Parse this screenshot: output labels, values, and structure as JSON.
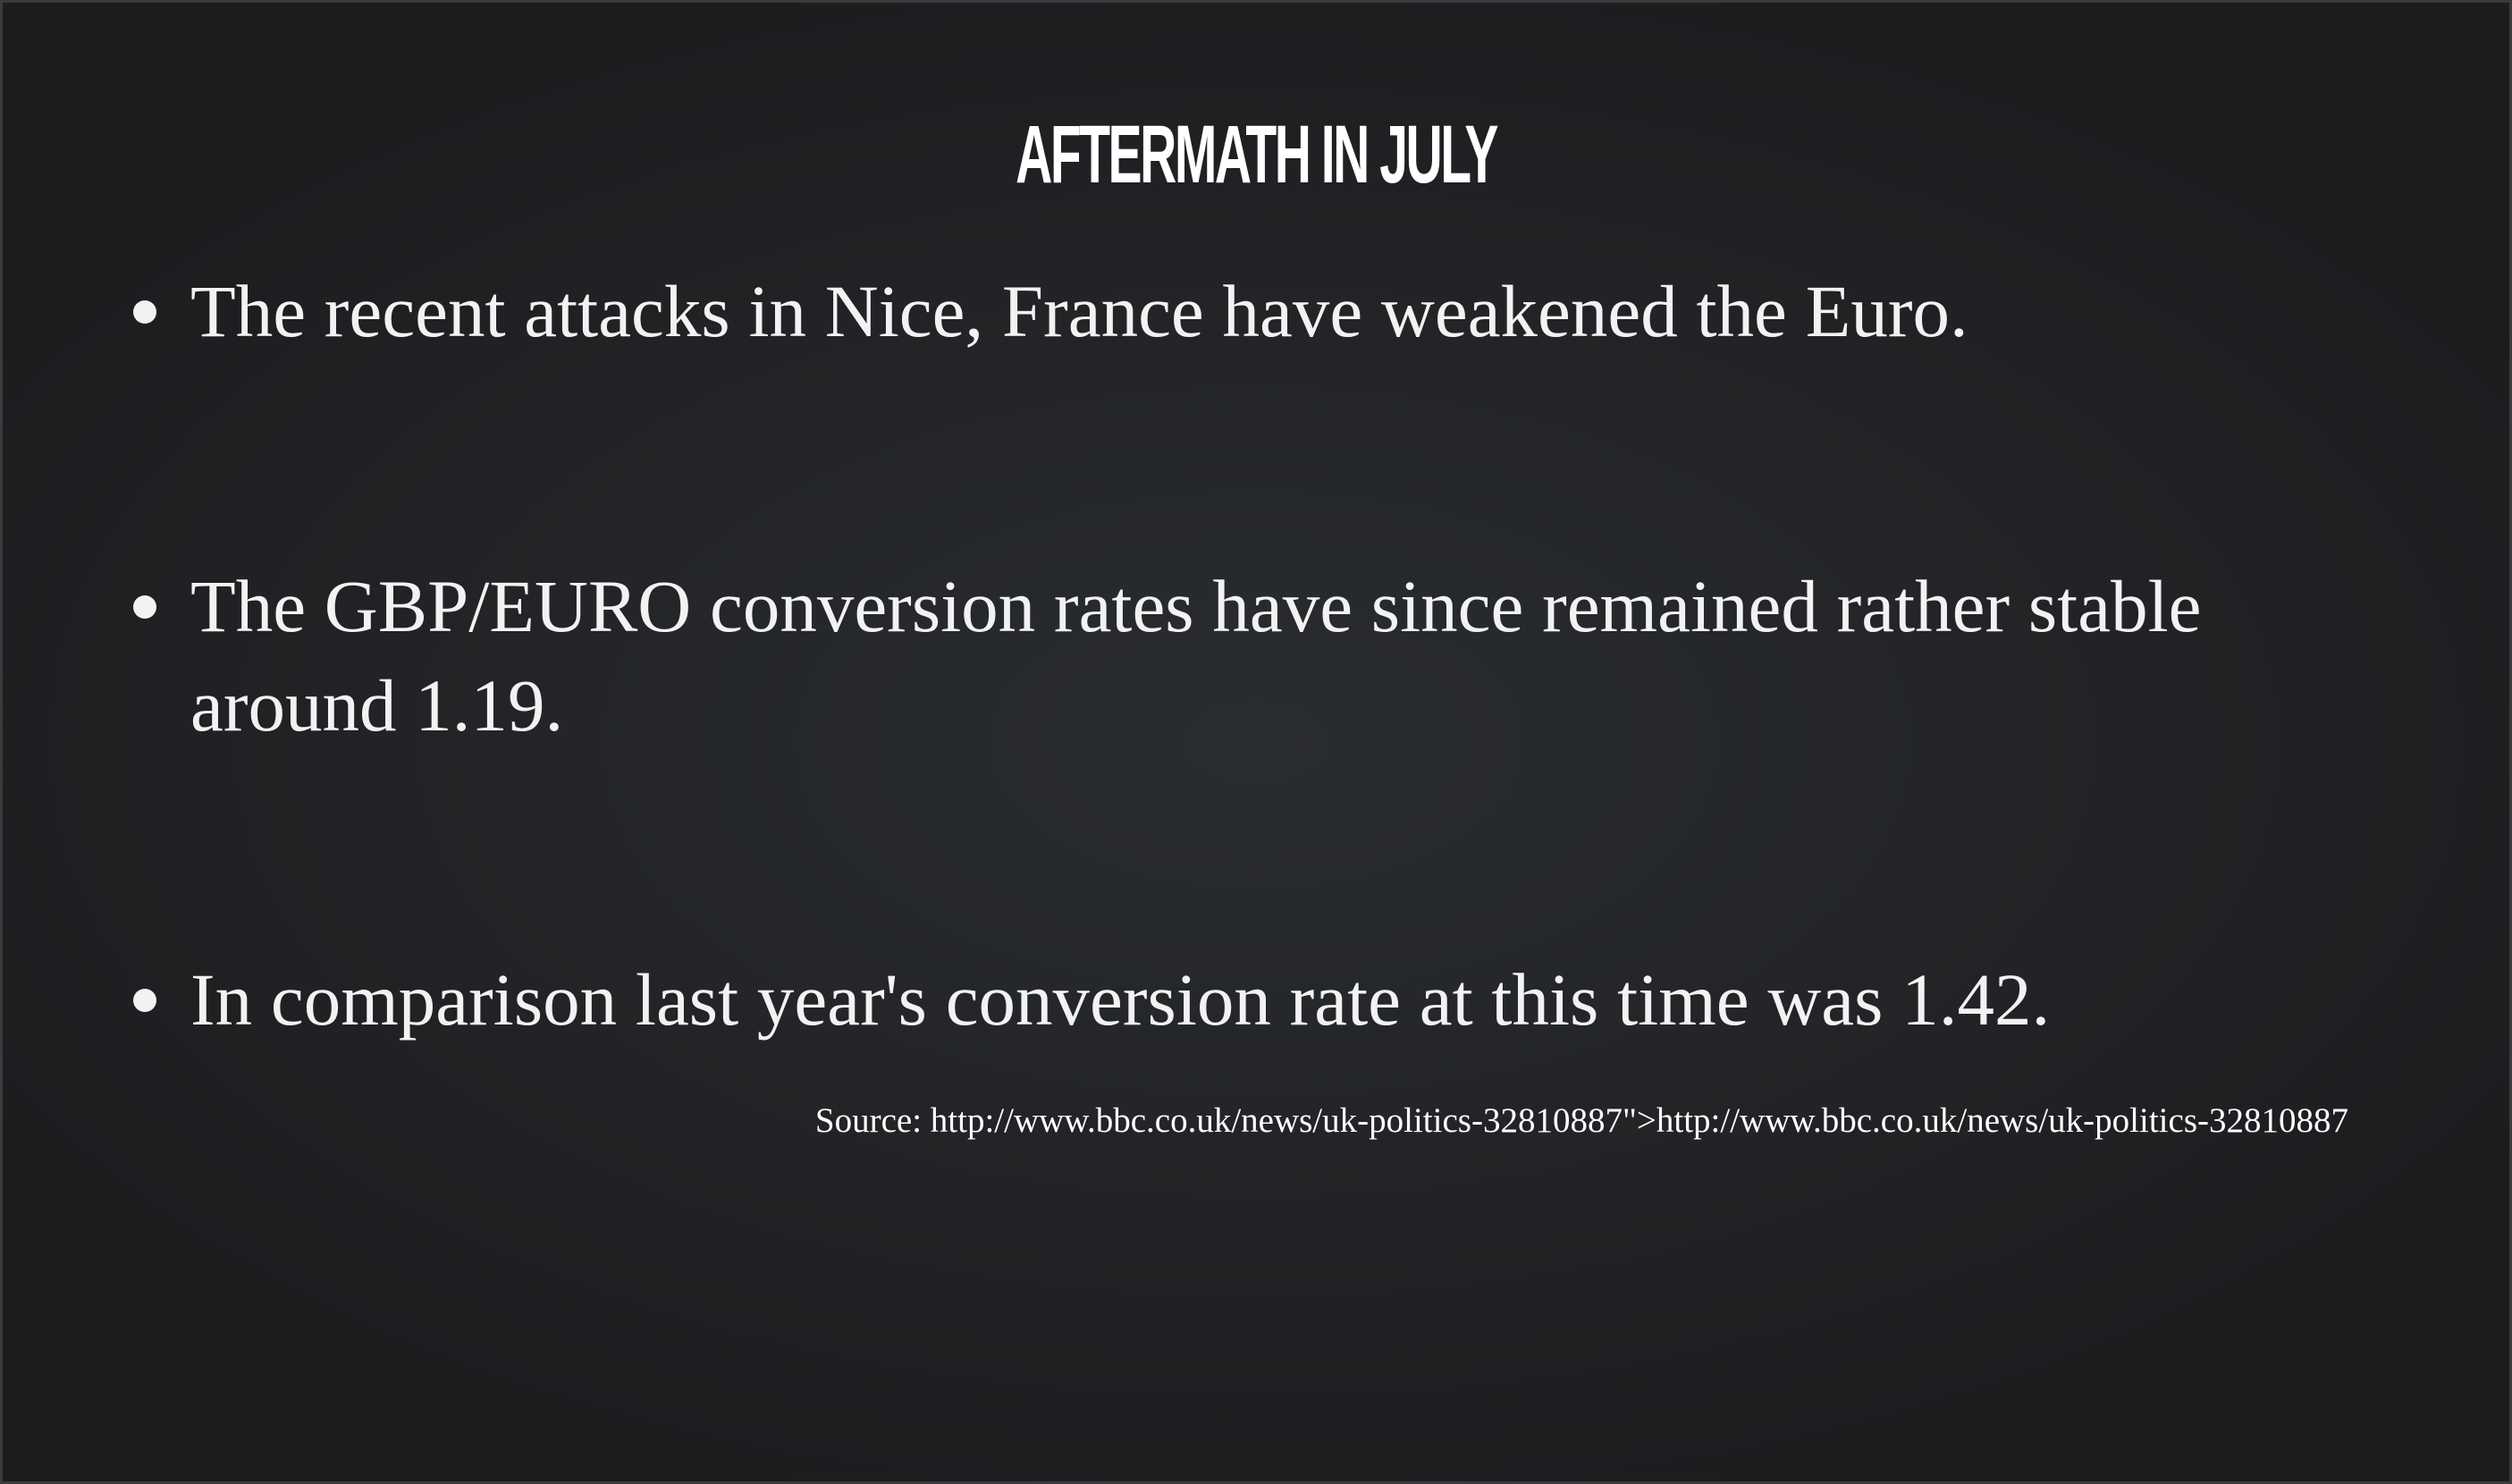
{
  "slide": {
    "title": "AFTERMATH IN JULY",
    "bullets": [
      "The recent attacks in Nice, France have weakened the Euro.",
      "The GBP/EURO conversion rates have since remained rather stable around 1.19.",
      "In comparison last year's conversion rate at this time was 1.42."
    ],
    "source": "Source: http://www.bbc.co.uk/news/uk-politics-32810887\">http://www.bbc.co.uk/news/uk-politics-32810887"
  },
  "colors": {
    "background": "#1c1d1f",
    "text": "#f2f2f2"
  }
}
